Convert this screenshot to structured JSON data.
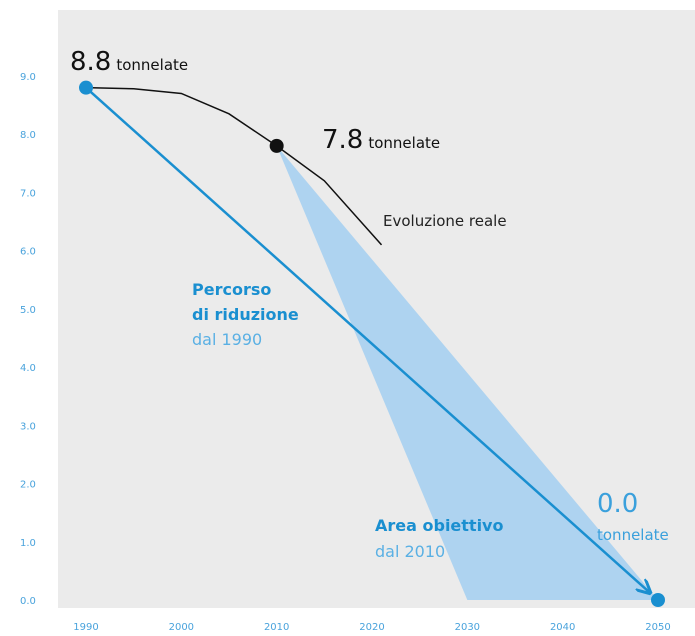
{
  "chart_data": {
    "type": "line",
    "xlim": [
      1990,
      2050
    ],
    "xticks": [
      1990,
      2000,
      2010,
      2020,
      2030,
      2040,
      2050
    ],
    "ylim": [
      0,
      9
    ],
    "yticks": [
      {
        "value": 0,
        "label": "0.0"
      },
      {
        "value": 1,
        "label": "1.0"
      },
      {
        "value": 2,
        "label": "2.0"
      },
      {
        "value": 3,
        "label": "3.0"
      },
      {
        "value": 4,
        "label": "4.0"
      },
      {
        "value": 5,
        "label": "5.0"
      },
      {
        "value": 6,
        "label": "6.0"
      },
      {
        "value": 7,
        "label": "7.0"
      },
      {
        "value": 8,
        "label": "8.0"
      },
      {
        "value": 9,
        "label": "9.0"
      }
    ],
    "unit": "tonnelate",
    "series": [
      {
        "role": "reduction",
        "color": "#1a8fd0",
        "x": [
          1990,
          2050
        ],
        "values": [
          8.8,
          0
        ],
        "value_labels": [
          "8.8",
          "0.0"
        ]
      },
      {
        "role": "actual",
        "color": "#111111",
        "x": [
          1990,
          1995,
          2000,
          2005,
          2010,
          2015,
          2021
        ],
        "values": [
          8.8,
          8.78,
          8.7,
          8.35,
          7.8,
          7.2,
          6.1
        ],
        "value_labels": [
          null,
          null,
          null,
          null,
          "7.8",
          null,
          null
        ]
      },
      {
        "role": "target-area",
        "color": "#aed3f0",
        "x": [
          2010,
          2030,
          2050
        ],
        "values": [
          7.8,
          0,
          0
        ]
      }
    ],
    "annotations": {
      "actual": [
        "Evoluzione reale"
      ],
      "reduction": [
        "Percorso",
        "di riduzione",
        "dal 1990"
      ],
      "target": [
        "Area obiettivo",
        "dal 2010"
      ]
    }
  }
}
